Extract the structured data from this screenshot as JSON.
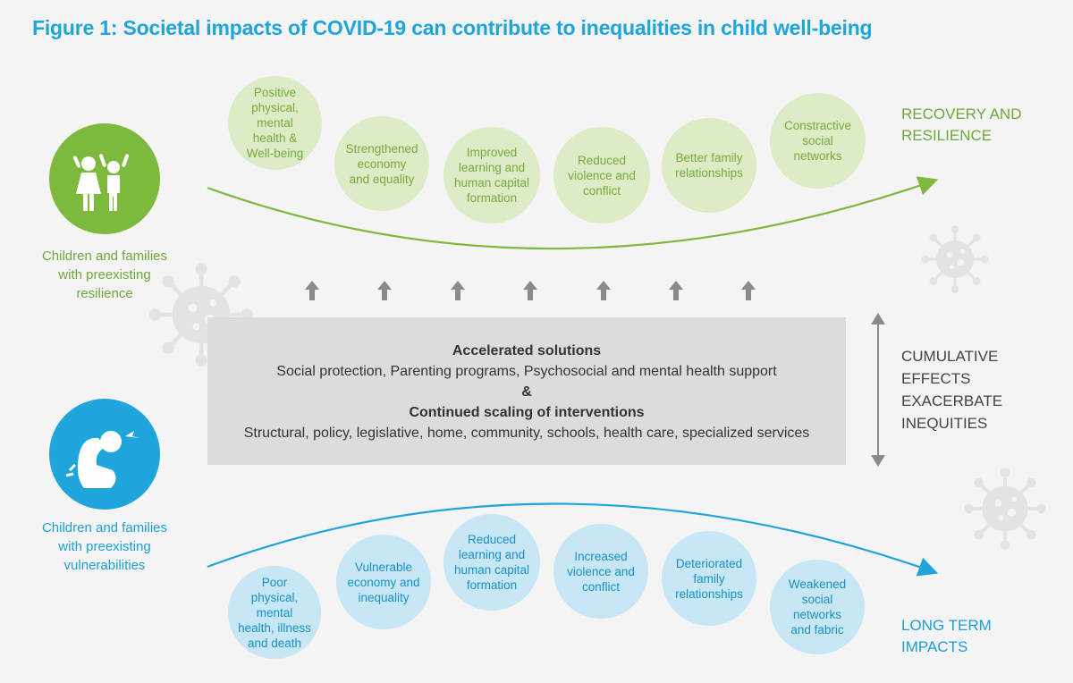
{
  "title": "Figure 1: Societal impacts of COVID-19 can contribute to inequalities in child well-being",
  "resilience_group": "Children and families\nwith preexisting\nresilience",
  "vulnerability_group": "Children and families\nwith preexisting\nvulnerabilities",
  "outcome_top": "RECOVERY AND\nRESILIENCE",
  "outcome_bottom": "LONG TERM\nIMPACTS",
  "positive_impacts": [
    "Positive\nphysical, mental\nhealth &\nWell-being",
    "Strengthened\neconomy\nand equality",
    "Improved\nlearning and\nhuman capital\nformation",
    "Reduced\nviolence and\nconflict",
    "Better family\nrelationships",
    "Constractive\nsocial\nnetworks"
  ],
  "negative_impacts": [
    "Poor\nphysical, mental\nhealth, illness\nand death",
    "Vulnerable\neconomy and\ninequality",
    "Reduced\nlearning and\nhuman capital\nformation",
    "Increased\nviolence and\nconflict",
    "Deteriorated\nfamily\nrelationships",
    "Weakened\nsocial networks\nand fabric"
  ],
  "solutions": {
    "heading1": "Accelerated solutions",
    "line1": "Social protection, Parenting programs,  Psychosocial and mental health support",
    "amp": "&",
    "heading2": "Continued scaling of interventions",
    "line2": "Structural, policy, legislative, home, community, schools, health care, specialized services"
  },
  "cumulative": "CUMULATIVE\nEFFECTS\nEXACERBATE\nINEQUITIES",
  "colors": {
    "green": "#7db93d",
    "blue": "#1ea5dc",
    "title": "#1ea5dc",
    "gray_box": "#dcdcdc"
  },
  "icons": {
    "resilience": "children-cheering-icon",
    "vulnerability": "child-crying-icon",
    "virus": "virus-icon"
  }
}
